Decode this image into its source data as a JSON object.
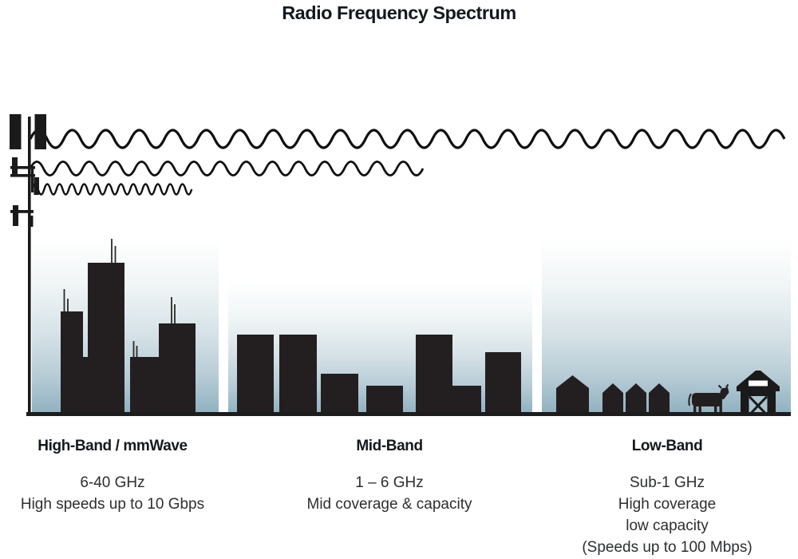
{
  "title": "Radio Frequency Spectrum",
  "colors": {
    "background": "#ffffff",
    "title_ink": "#15191e",
    "silhouette": "#231f20",
    "wave_stroke": "#0f0f0f",
    "sky_gradient_top": "#ffffff",
    "sky_gradient_bottom": "#8fb0c0",
    "barn_door_fill": "#a9c3cf",
    "ground": "#1c1c1c"
  },
  "graphics": {
    "tower_icon": "cell-tower-icon",
    "wave_icons": [
      "long-radio-wave-icon",
      "medium-radio-wave-icon",
      "short-radio-wave-icon"
    ],
    "scene_icons": [
      "city-skyscrapers-icon",
      "mid-rise-buildings-icon",
      "rural-houses-icon",
      "cow-icon",
      "barn-icon"
    ]
  },
  "bands": [
    {
      "heading": "High-Band / mmWave",
      "lines": [
        "6-40 GHz",
        "High speeds up to 10 Gbps"
      ]
    },
    {
      "heading": "Mid-Band",
      "lines": [
        "1 – 6 GHz",
        "Mid coverage & capacity"
      ]
    },
    {
      "heading": "Low-Band",
      "lines": [
        "Sub-1 GHz",
        "High coverage",
        "low capacity",
        "(Speeds up to 100 Mbps)"
      ]
    }
  ]
}
